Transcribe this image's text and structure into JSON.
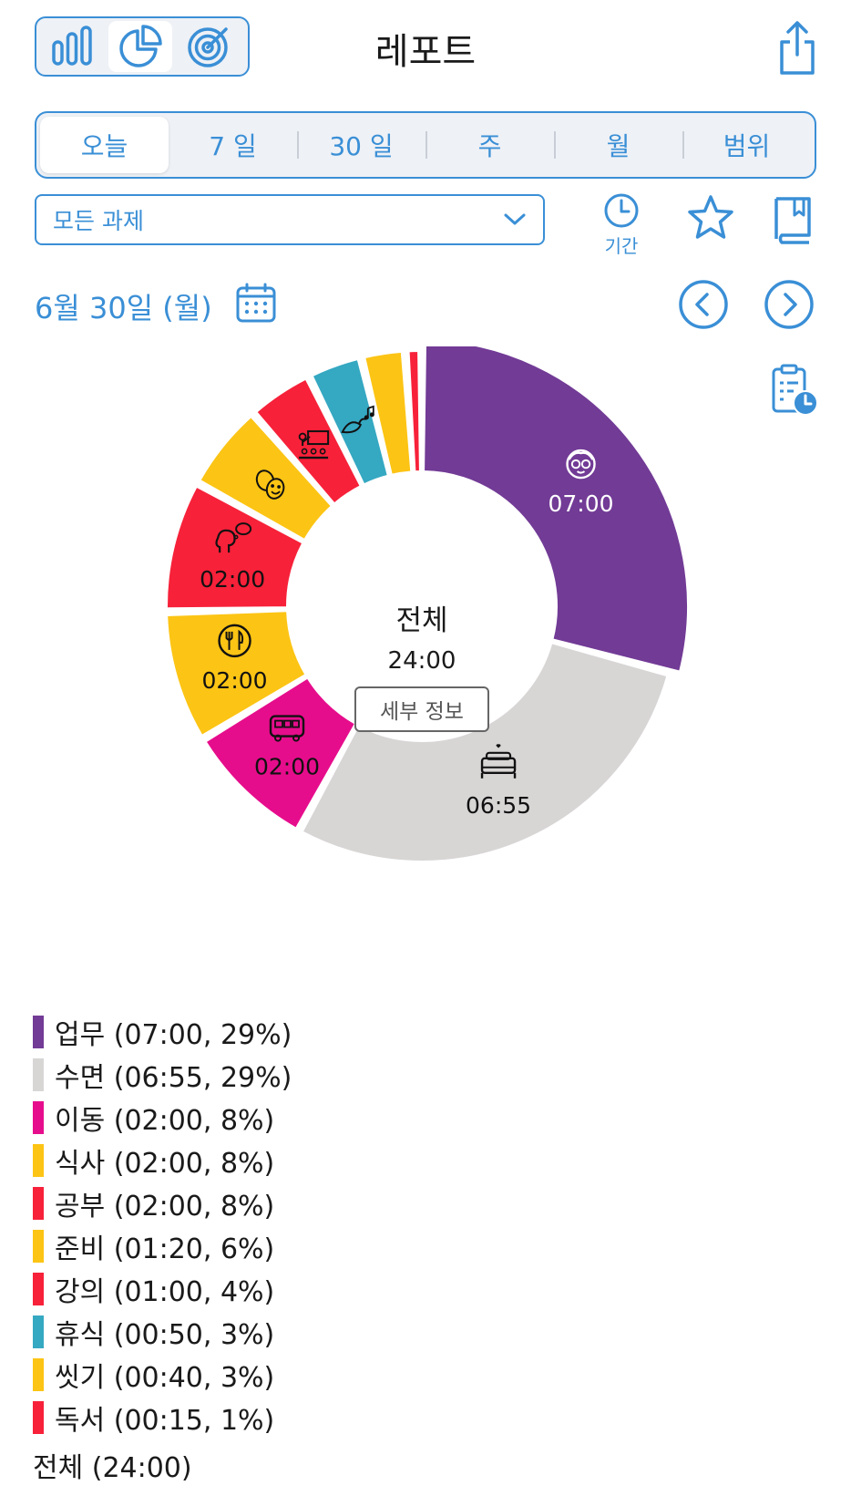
{
  "header": {
    "title": "레포트"
  },
  "periods": [
    {
      "label": "오늘",
      "active": true
    },
    {
      "label": "7 일",
      "active": false
    },
    {
      "label": "30 일",
      "active": false
    },
    {
      "label": "주",
      "active": false
    },
    {
      "label": "월",
      "active": false
    },
    {
      "label": "범위",
      "active": false
    }
  ],
  "filter": {
    "task_select": "모든 과제",
    "period_label": "기간"
  },
  "date": {
    "label": "6월 30일 (월)"
  },
  "center": {
    "title": "전체",
    "total": "24:00",
    "detail_button": "세부 정보"
  },
  "chart_data": {
    "type": "pie",
    "variant": "donut",
    "start_angle_deg": 0,
    "direction": "clockwise",
    "slices": [
      {
        "name": "업무",
        "duration": "07:00",
        "minutes": 420,
        "percent": 29,
        "color": "#723b96",
        "icon": "face-glasses-icon",
        "label": "07:00",
        "label_color": "#ffffff"
      },
      {
        "name": "수면",
        "duration": "06:55",
        "minutes": 415,
        "percent": 29,
        "color": "#d8d5d5",
        "icon": "bed-icon",
        "label": "06:55",
        "label_color": "#111111"
      },
      {
        "name": "이동",
        "duration": "02:00",
        "minutes": 120,
        "percent": 8,
        "color": "#e60d8c",
        "icon": "bus-icon",
        "label": "02:00",
        "label_color": "#111111"
      },
      {
        "name": "식사",
        "duration": "02:00",
        "minutes": 120,
        "percent": 8,
        "color": "#fcc414",
        "icon": "fork-knife-icon",
        "label": "02:00",
        "label_color": "#111111"
      },
      {
        "name": "공부",
        "duration": "02:00",
        "minutes": 120,
        "percent": 8,
        "color": "#f7213a",
        "icon": "thinking-head-icon",
        "label": "02:00",
        "label_color": "#111111"
      },
      {
        "name": "준비",
        "duration": "01:20",
        "minutes": 80,
        "percent": 6,
        "color": "#fcc414",
        "icon": "theater-masks-icon",
        "label": "",
        "label_color": "#111111"
      },
      {
        "name": "강의",
        "duration": "01:00",
        "minutes": 60,
        "percent": 4,
        "color": "#f7213a",
        "icon": "lecture-icon",
        "label": "",
        "label_color": "#111111"
      },
      {
        "name": "휴식",
        "duration": "00:50",
        "minutes": 50,
        "percent": 3,
        "color": "#35a8c2",
        "icon": "bird-music-icon",
        "label": "",
        "label_color": "#111111"
      },
      {
        "name": "씻기",
        "duration": "00:40",
        "minutes": 40,
        "percent": 3,
        "color": "#fcc414",
        "icon": "",
        "label": "",
        "label_color": "#111111"
      },
      {
        "name": "독서",
        "duration": "00:15",
        "minutes": 15,
        "percent": 1,
        "color": "#f7213a",
        "icon": "",
        "label": "",
        "label_color": "#111111"
      }
    ],
    "total": "24:00"
  },
  "legend_total": "전체 (24:00)",
  "colors": {
    "accent": "#3a8fd6"
  }
}
